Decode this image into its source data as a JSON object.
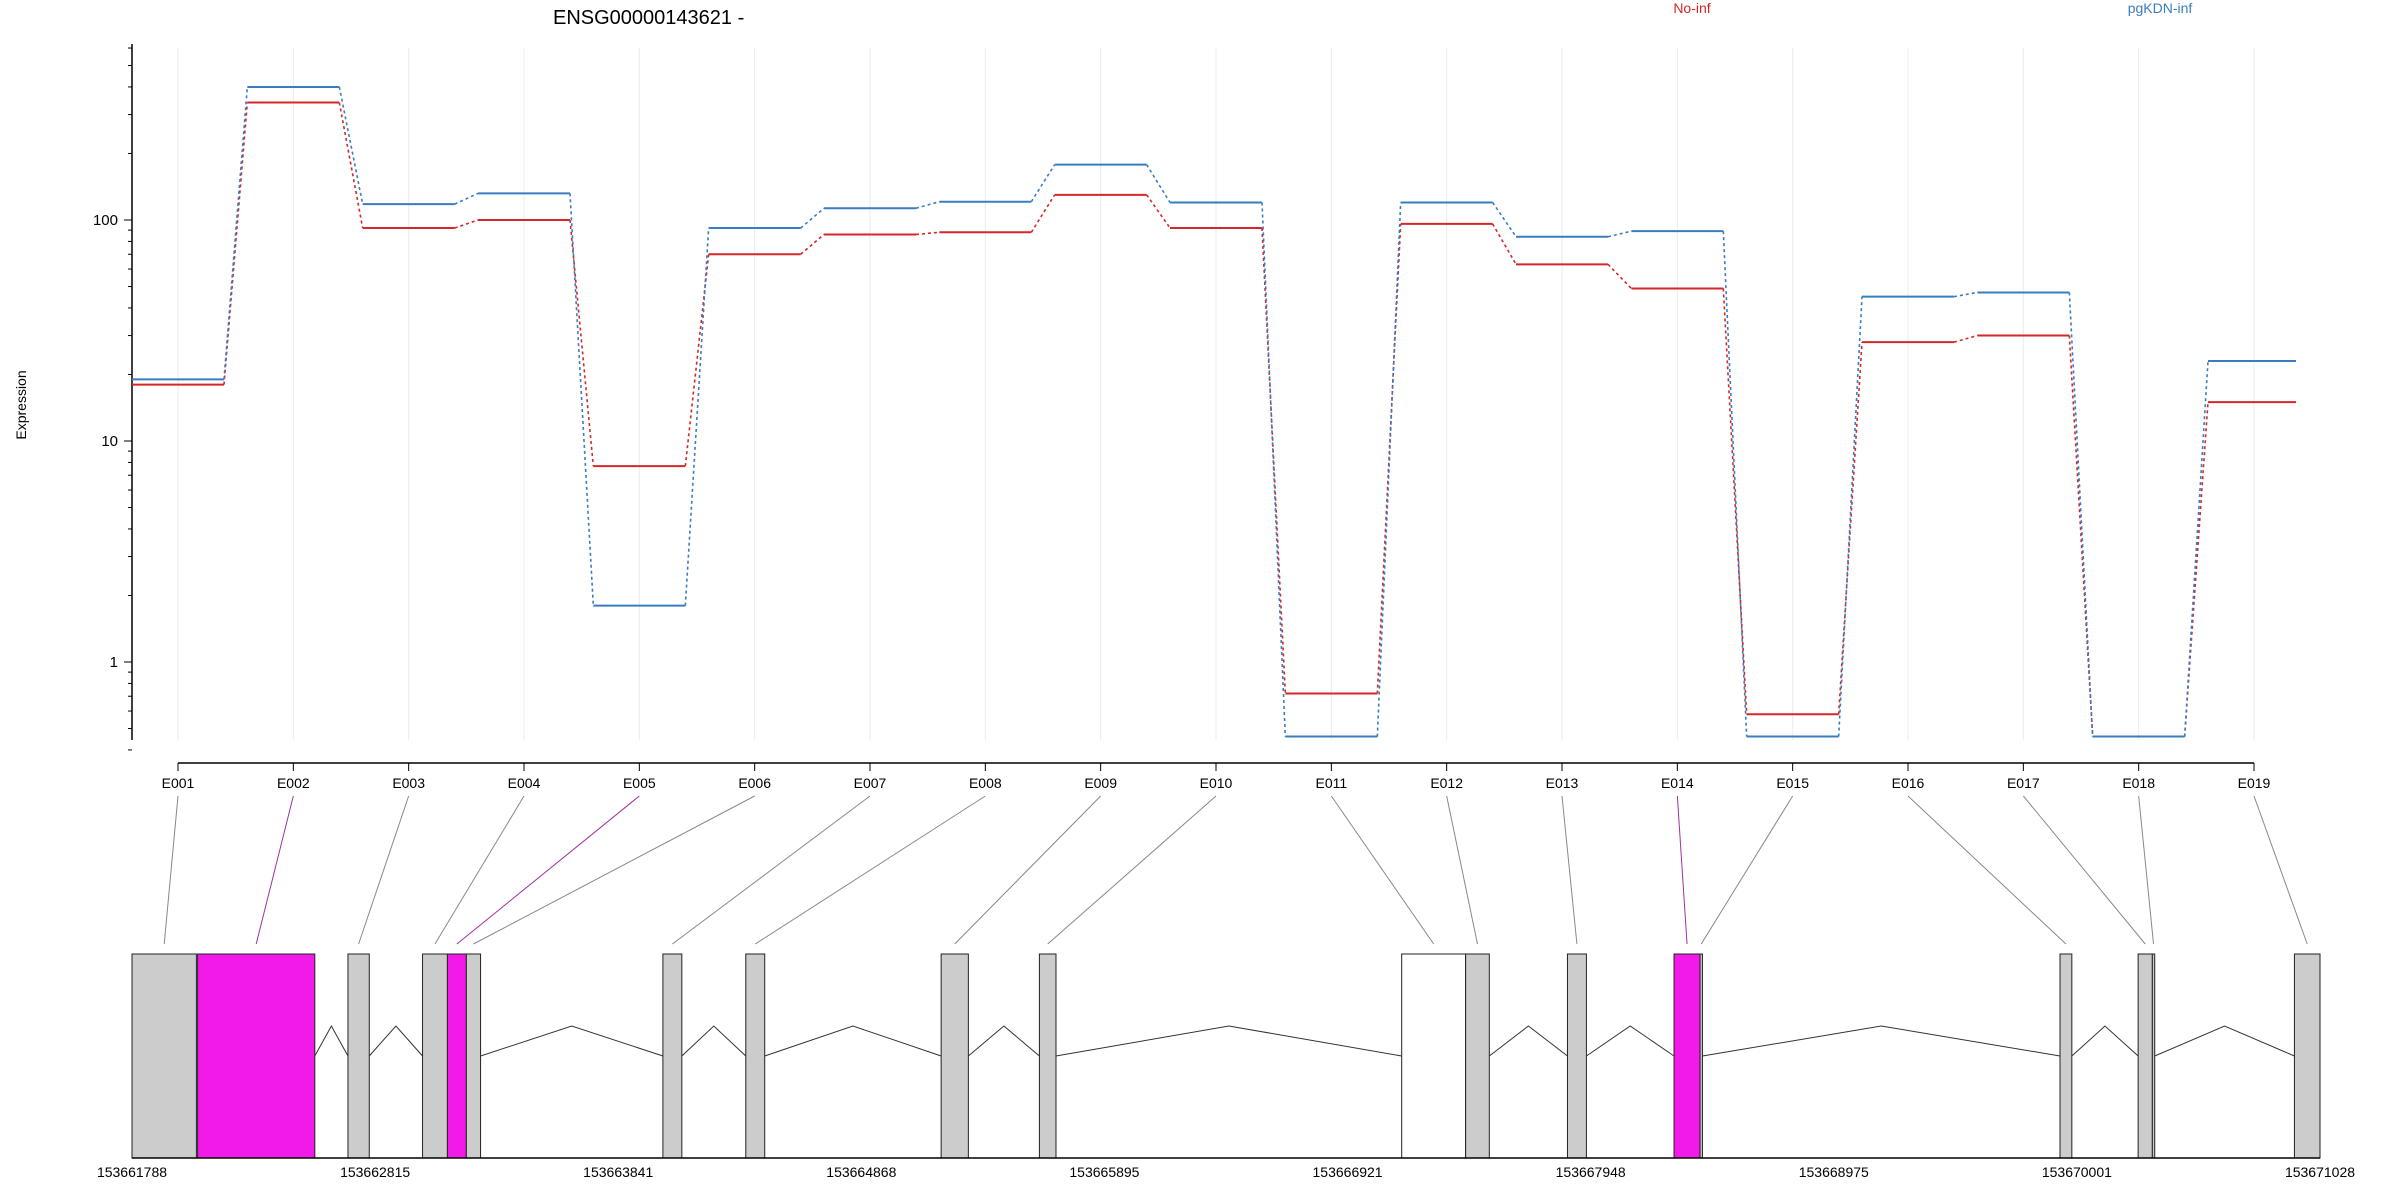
{
  "chart_data": {
    "type": "line",
    "title": "ENSG00000143621 -",
    "ylabel": "Expression",
    "xlabel": "",
    "y_scale": "log",
    "ylim": [
      0.4,
      600
    ],
    "y_ticks": [
      {
        "value": 1,
        "label": "1"
      },
      {
        "value": 10,
        "label": "10"
      },
      {
        "value": 100,
        "label": "100"
      }
    ],
    "grid": true,
    "legend": {
      "placement": "top"
    },
    "categories": [
      "E001",
      "E002",
      "E003",
      "E004",
      "E005",
      "E006",
      "E007",
      "E008",
      "E009",
      "E010",
      "E011",
      "E012",
      "E013",
      "E014",
      "E015",
      "E016",
      "E017",
      "E018",
      "E019"
    ],
    "series": [
      {
        "name": "No-inf",
        "color": "#d62728",
        "values": [
          18,
          340,
          92,
          100,
          7.7,
          70,
          86,
          88,
          130,
          92,
          0.72,
          96,
          63,
          49,
          0.58,
          28,
          30,
          0.46,
          15
        ]
      },
      {
        "name": "pgKDN-inf",
        "color": "#3a7dbf",
        "values": [
          19,
          400,
          118,
          132,
          1.8,
          92,
          113,
          121,
          178,
          120,
          0.46,
          120,
          84,
          89,
          0.46,
          45,
          47,
          0.46,
          23
        ]
      }
    ],
    "gene_model": {
      "coordinate_labels": [
        "153661788",
        "153662815",
        "153663841",
        "153664868",
        "153665895",
        "153666921",
        "153667948",
        "153668975",
        "153670001",
        "153671028"
      ],
      "coordinate_start": 153661788,
      "coordinate_end": 153671028,
      "exon_fill": "#cccccc",
      "highlight_fill": "#f21ae8",
      "exons": [
        {
          "id": "E001",
          "start": 153661788,
          "end": 153662060,
          "highlight": false
        },
        {
          "id": "E002",
          "start": 153662065,
          "end": 153662560,
          "highlight": true
        },
        {
          "id": "E003",
          "start": 153662700,
          "end": 153662790,
          "highlight": false
        },
        {
          "id": "E004",
          "start": 153663015,
          "end": 153663120,
          "highlight": false
        },
        {
          "id": "E005",
          "start": 153663120,
          "end": 153663200,
          "highlight": true
        },
        {
          "id": "E006",
          "start": 153663200,
          "end": 153663260,
          "highlight": false
        },
        {
          "id": "E007",
          "start": 153664030,
          "end": 153664110,
          "highlight": false
        },
        {
          "id": "E008",
          "start": 153664380,
          "end": 153664460,
          "highlight": false
        },
        {
          "id": "E009",
          "start": 153665205,
          "end": 153665320,
          "highlight": false
        },
        {
          "id": "E010",
          "start": 153665620,
          "end": 153665690,
          "highlight": false
        },
        {
          "id": "E011",
          "start": 153667150,
          "end": 153667420,
          "highlight": false,
          "outline": true
        },
        {
          "id": "E012",
          "start": 153667420,
          "end": 153667520,
          "highlight": false
        },
        {
          "id": "E013",
          "start": 153667850,
          "end": 153667930,
          "highlight": false
        },
        {
          "id": "E014",
          "start": 153668300,
          "end": 153668410,
          "highlight": true
        },
        {
          "id": "E015",
          "start": 153668410,
          "end": 153668420,
          "highlight": false
        },
        {
          "id": "E016",
          "start": 153669930,
          "end": 153669980,
          "highlight": false
        },
        {
          "id": "E017",
          "start": 153670260,
          "end": 153670320,
          "highlight": false
        },
        {
          "id": "E018",
          "start": 153670320,
          "end": 153670330,
          "highlight": false
        },
        {
          "id": "E019",
          "start": 153670920,
          "end": 153671028,
          "highlight": false
        }
      ],
      "connector_highlight_color": "#a030a0",
      "connector_color": "#888888"
    }
  }
}
